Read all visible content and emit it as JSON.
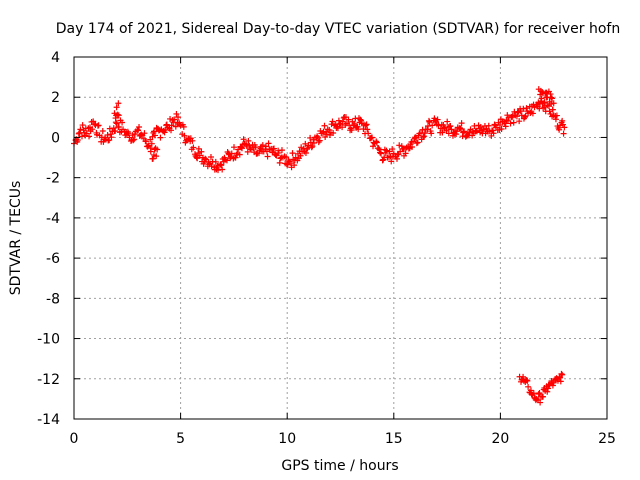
{
  "chart_data": {
    "type": "scatter",
    "title": "Day 174 of 2021, Sidereal Day-to-day VTEC variation (SDTVAR) for receiver hofn",
    "xlabel": "GPS time / hours",
    "ylabel": "SDTVAR / TECUs",
    "xlim": [
      0,
      25
    ],
    "ylim": [
      -14,
      4
    ],
    "xticks": [
      0,
      5,
      10,
      15,
      20,
      25
    ],
    "yticks": [
      -14,
      -12,
      -10,
      -8,
      -6,
      -4,
      -2,
      0,
      2,
      4
    ],
    "grid": true,
    "marker": "plus",
    "color": "#ff0000",
    "series": [
      {
        "name": "main",
        "band": 0.35,
        "x": [
          0.0,
          0.3,
          0.6,
          0.9,
          1.2,
          1.5,
          1.8,
          2.0,
          2.3,
          2.6,
          2.9,
          3.2,
          3.5,
          3.8,
          4.1,
          4.4,
          4.7,
          5.0,
          5.3,
          5.6,
          5.9,
          6.2,
          6.5,
          6.8,
          7.1,
          7.4,
          7.7,
          8.0,
          8.3,
          8.6,
          8.9,
          9.2,
          9.5,
          9.8,
          10.1,
          10.4,
          10.7,
          11.0,
          11.3,
          11.6,
          11.9,
          12.2,
          12.5,
          12.8,
          13.1,
          13.5,
          13.8,
          14.1,
          14.4,
          14.7,
          15.0,
          15.3,
          15.6,
          15.9,
          16.2,
          16.5,
          16.8,
          17.1,
          17.4,
          17.7,
          18.0,
          18.3,
          18.6,
          18.9,
          19.2,
          19.5,
          19.8,
          20.1,
          20.4,
          20.7,
          21.0,
          21.3,
          21.6,
          21.9,
          22.2,
          22.5,
          22.8,
          23.0
        ],
        "y": [
          -0.3,
          0.4,
          0.2,
          0.8,
          0.1,
          -0.1,
          0.3,
          0.7,
          0.4,
          0.0,
          0.3,
          0.1,
          -0.4,
          0.1,
          0.4,
          0.5,
          0.9,
          0.6,
          -0.1,
          -0.5,
          -0.9,
          -1.1,
          -1.2,
          -1.4,
          -1.1,
          -0.8,
          -0.6,
          -0.3,
          -0.6,
          -0.8,
          -0.7,
          -0.6,
          -0.9,
          -1.0,
          -1.2,
          -1.0,
          -0.7,
          -0.4,
          0.0,
          0.2,
          0.4,
          0.6,
          0.7,
          0.7,
          0.6,
          0.7,
          0.2,
          -0.3,
          -0.8,
          -1.0,
          -0.8,
          -0.7,
          -0.5,
          -0.2,
          0.2,
          0.4,
          0.6,
          0.6,
          0.5,
          0.4,
          0.5,
          0.3,
          0.4,
          0.3,
          0.4,
          0.3,
          0.5,
          0.8,
          1.0,
          1.1,
          1.1,
          1.2,
          1.5,
          1.8,
          1.6,
          1.1,
          0.6,
          0.5
        ]
      },
      {
        "name": "outliers",
        "band": 0.4,
        "x": [
          1.9,
          2.0,
          2.1,
          3.6,
          3.9,
          21.8,
          22.0,
          22.2,
          22.5
        ],
        "y": [
          1.2,
          1.5,
          1.1,
          -0.7,
          -0.6,
          2.4,
          2.2,
          2.0,
          1.7
        ]
      },
      {
        "name": "lower-group",
        "band": 0.25,
        "x": [
          20.9,
          21.1,
          21.3,
          21.5,
          21.7,
          21.9,
          22.1,
          22.3,
          22.5,
          22.7,
          22.9
        ],
        "y": [
          -11.9,
          -12.1,
          -12.4,
          -12.8,
          -13.0,
          -12.9,
          -12.6,
          -12.3,
          -12.2,
          -12.1,
          -11.8
        ]
      }
    ]
  }
}
